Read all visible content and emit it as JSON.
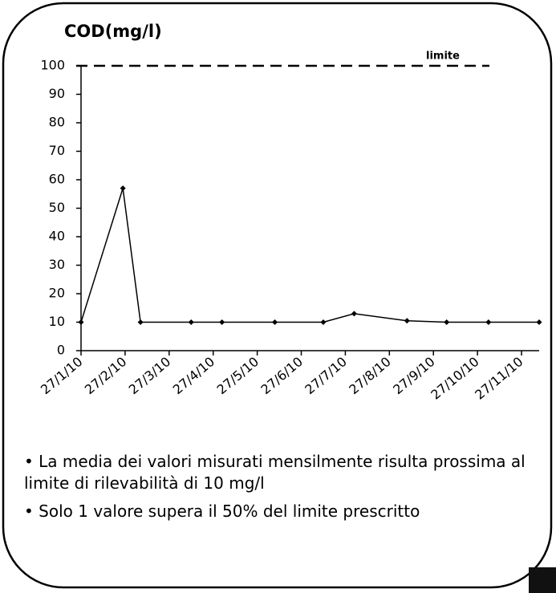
{
  "chart_data": {
    "type": "line",
    "title": "COD(mg/l)",
    "x": [
      0,
      0.95,
      1.35,
      2.5,
      3.2,
      4.4,
      5.5,
      6.2,
      7.4,
      8.3,
      9.25,
      10.4
    ],
    "values": [
      10,
      57,
      10,
      10,
      10,
      10,
      10,
      13,
      10.5,
      10,
      10,
      10
    ],
    "color": "#000000",
    "xlim": [
      0,
      10.4
    ],
    "xticks": [
      {
        "value": 0,
        "label": "27/1/10"
      },
      {
        "value": 1,
        "label": "27/2/10"
      },
      {
        "value": 2,
        "label": "27/3/10"
      },
      {
        "value": 3,
        "label": "27/4/10"
      },
      {
        "value": 4,
        "label": "27/5/10"
      },
      {
        "value": 5,
        "label": "27/6/10"
      },
      {
        "value": 6,
        "label": "27/7/10"
      },
      {
        "value": 7,
        "label": "27/8/10"
      },
      {
        "value": 8,
        "label": "27/9/10"
      },
      {
        "value": 9,
        "label": "27/10/10"
      },
      {
        "value": 10,
        "label": "27/11/10"
      }
    ],
    "ylim": [
      0,
      100
    ],
    "yticks": [
      0,
      10,
      20,
      30,
      40,
      50,
      60,
      70,
      80,
      90,
      100
    ],
    "limit": 100,
    "limit_label": "limite"
  },
  "notes": [
    "• La media dei valori misurati mensilmente risulta prossima al limite di rilevabilità di 10 mg/l",
    "• Solo 1 valore supera il 50% del limite prescritto"
  ]
}
